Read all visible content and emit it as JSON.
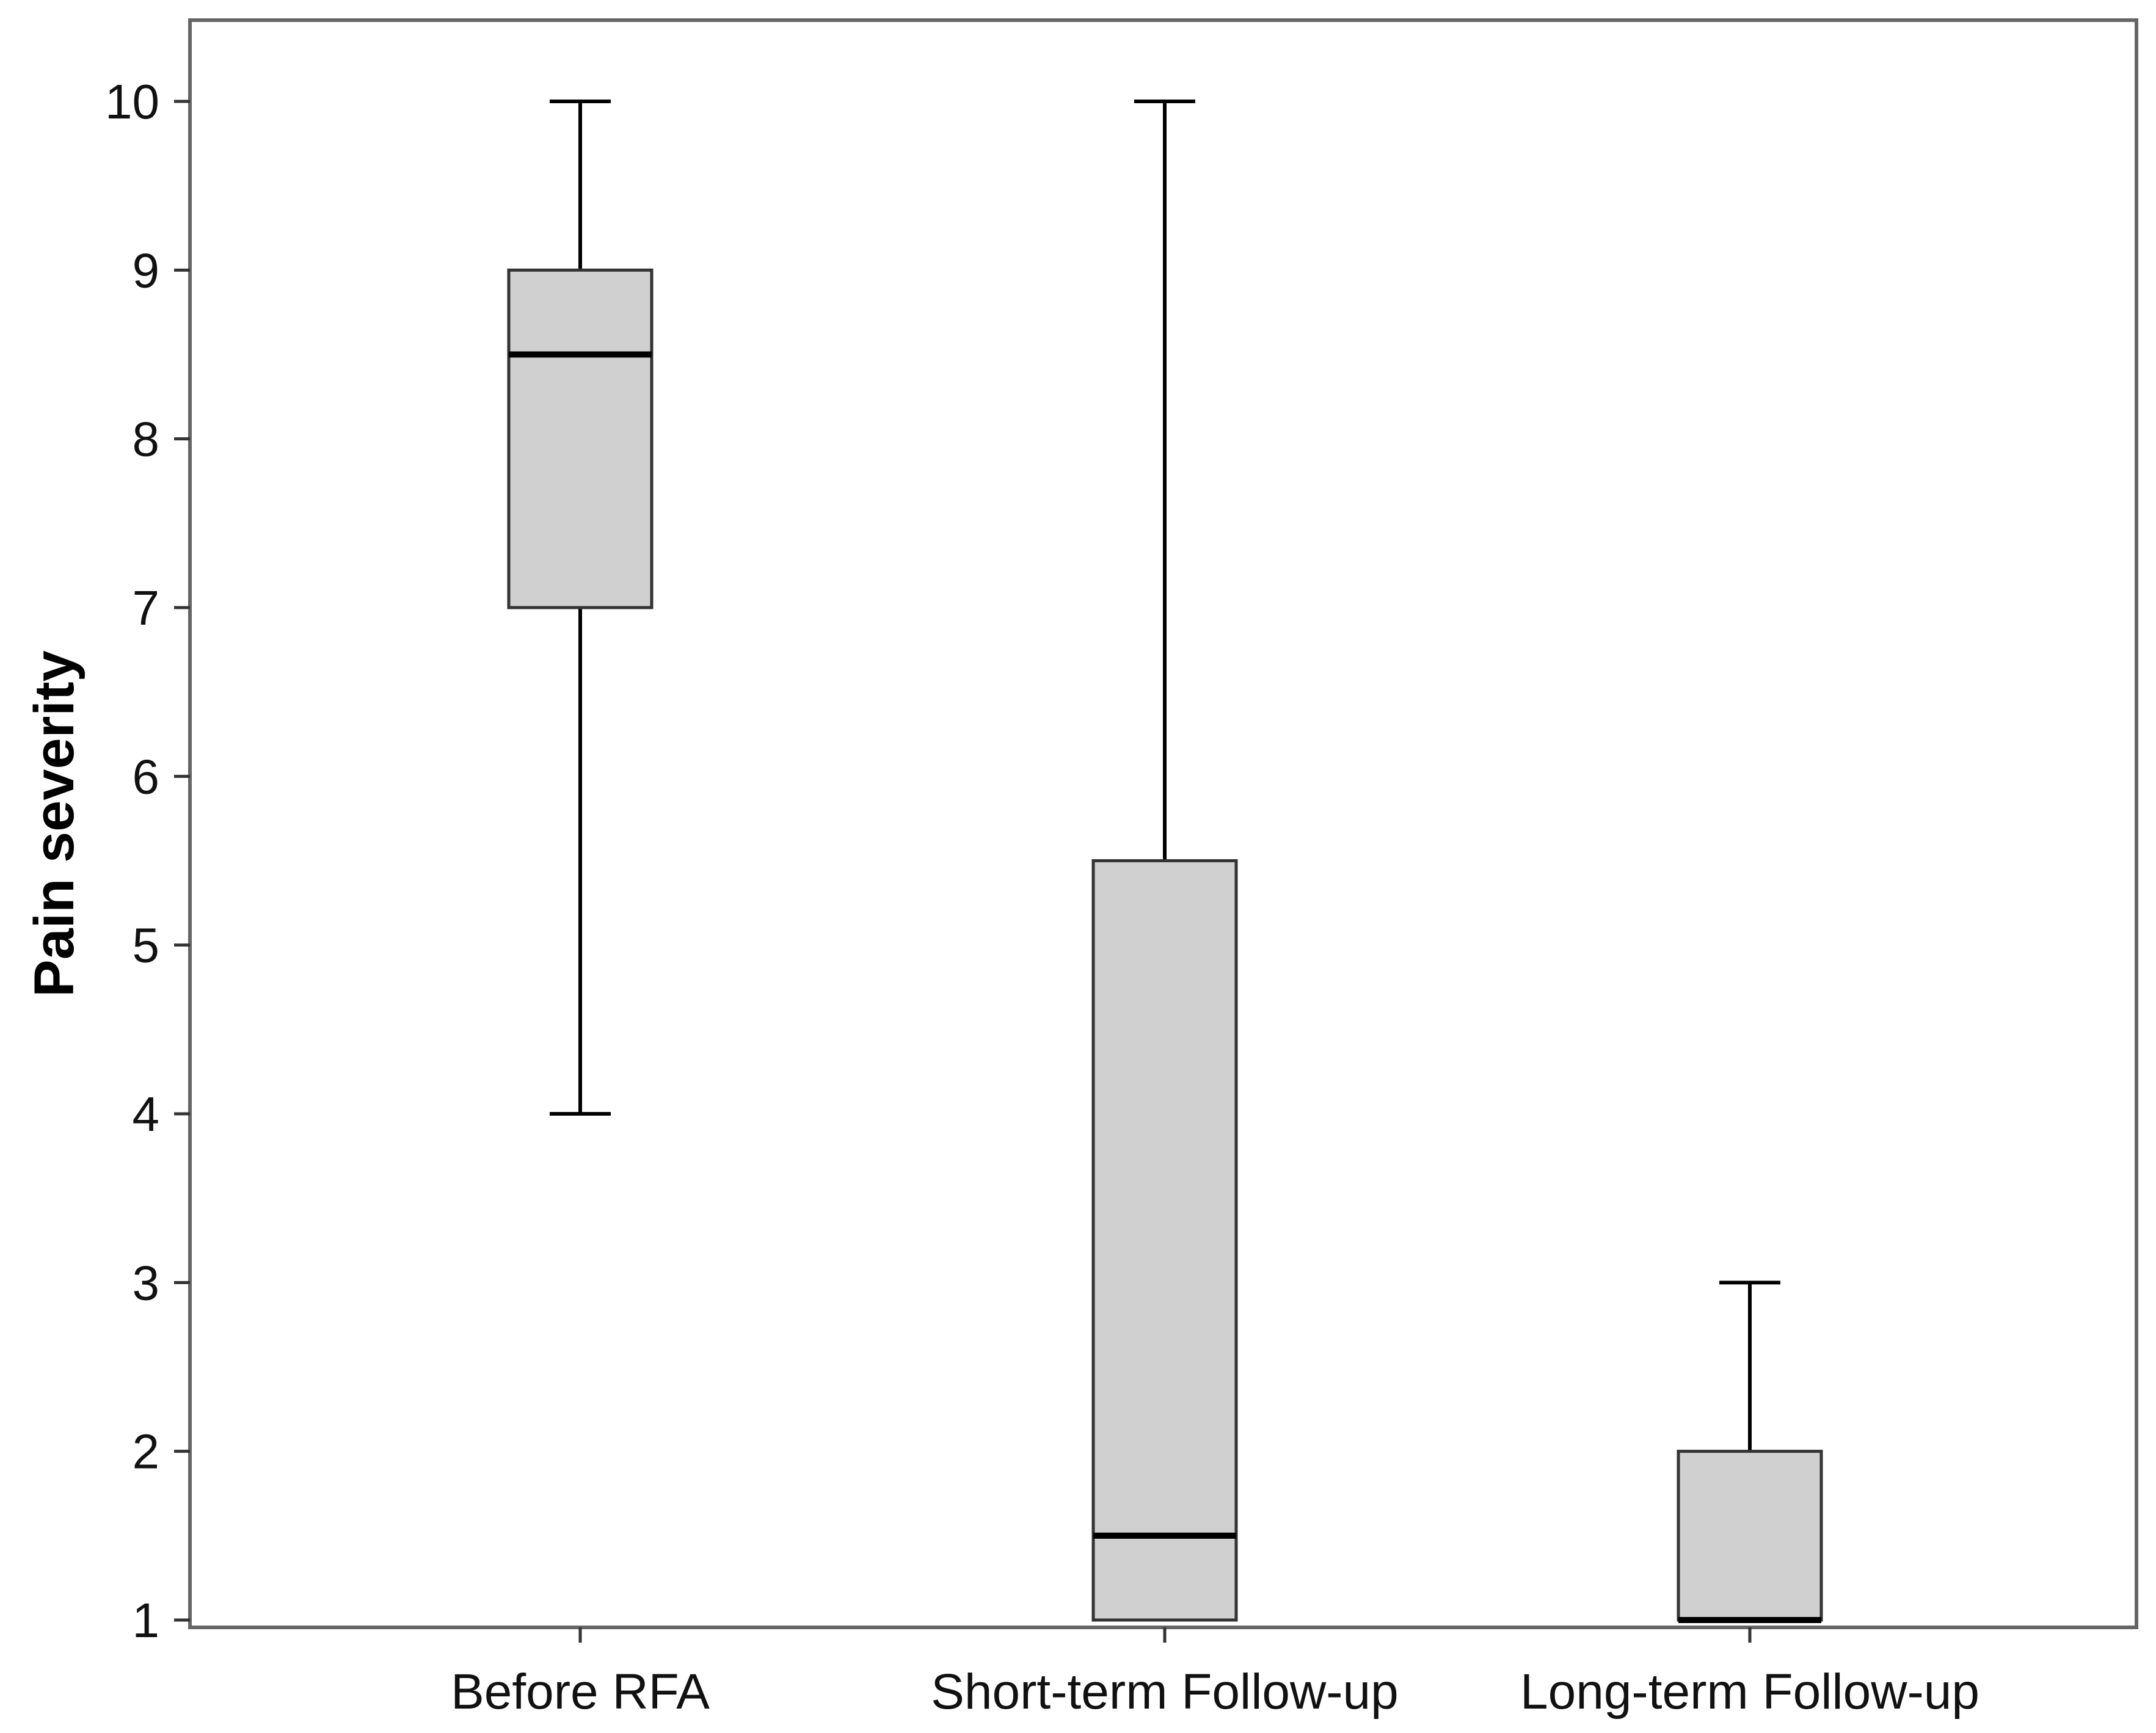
{
  "chart_data": {
    "type": "boxplot",
    "title": "",
    "xlabel": "",
    "ylabel": "Pain severity",
    "ylim": [
      1,
      10
    ],
    "yticks": [
      "1",
      "2",
      "3",
      "4",
      "5",
      "6",
      "7",
      "8",
      "9",
      "10"
    ],
    "categories": [
      "Before RFA",
      "Short-term Follow-up",
      "Long-term Follow-up"
    ],
    "boxes": [
      {
        "category": "Before RFA",
        "whisker_low": 4,
        "q1": 7,
        "median": 8.5,
        "q3": 9,
        "whisker_high": 10
      },
      {
        "category": "Short-term Follow-up",
        "whisker_low": 1,
        "q1": 1,
        "median": 1.5,
        "q3": 5.5,
        "whisker_high": 10
      },
      {
        "category": "Long-term Follow-up",
        "whisker_low": 1,
        "q1": 1,
        "median": 1,
        "q3": 2,
        "whisker_high": 3
      }
    ],
    "grid": false,
    "box_fill": "#d0d0d0",
    "line_color": "#000000",
    "frame_color": "#666666"
  }
}
